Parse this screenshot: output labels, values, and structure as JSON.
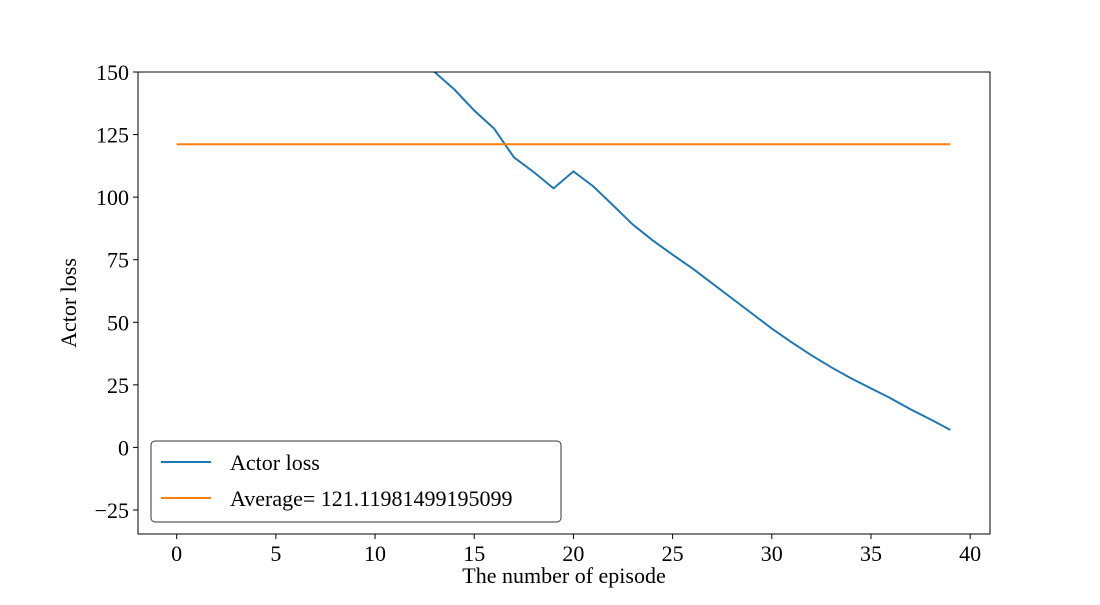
{
  "chart_data": {
    "type": "line",
    "xlabel": "The number of episode",
    "ylabel": "Actor loss",
    "xlim": [
      -1.95,
      41.0
    ],
    "ylim": [
      -34.6,
      150
    ],
    "xticks": [
      0,
      5,
      10,
      15,
      20,
      25,
      30,
      35,
      40
    ],
    "yticks": [
      {
        "value": -25,
        "label": "−25"
      },
      0,
      25,
      50,
      75,
      100,
      125,
      150
    ],
    "legend": "lower left",
    "series": [
      {
        "name": "Actor loss",
        "color": "#1f77b4",
        "x": [
          13,
          14,
          15,
          16,
          17,
          18,
          19,
          20,
          21,
          22,
          23,
          24,
          25,
          26,
          27,
          28,
          29,
          30,
          31,
          32,
          33,
          34,
          35,
          36,
          37,
          38,
          39
        ],
        "values": [
          150,
          143,
          134.6,
          127.4,
          115.9,
          110,
          103.5,
          110.3,
          104.3,
          96.7,
          89,
          82.7,
          77,
          71.5,
          65.5,
          59.5,
          53.5,
          47.5,
          42,
          36.8,
          32,
          27.6,
          23.6,
          19.6,
          15.2,
          11.2,
          7
        ]
      },
      {
        "name": "Average= 121.11981499195099",
        "color": "#ff7f0e",
        "x": [
          0,
          39
        ],
        "values": [
          121.11981499195099,
          121.11981499195099
        ]
      }
    ]
  }
}
